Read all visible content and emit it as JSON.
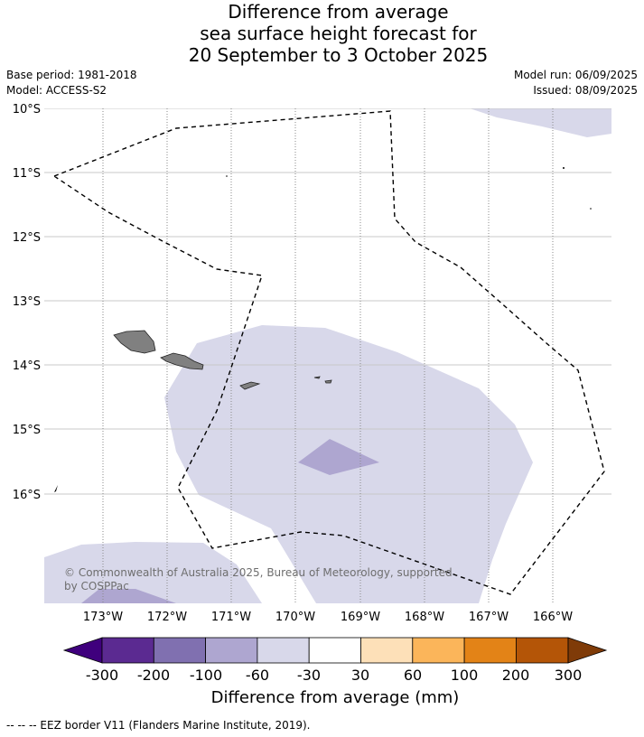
{
  "title": {
    "line1": "Difference from average",
    "line2": "sea surface height forecast for",
    "line3": "20 September to 3 October 2025"
  },
  "meta": {
    "base_period": "Base period: 1981-2018",
    "model": "Model: ACCESS-S2",
    "model_run": "Model run: 06/09/2025",
    "issued": "Issued: 08/09/2025"
  },
  "map": {
    "lat_labels": [
      "10°S",
      "11°S",
      "12°S",
      "13°S",
      "14°S",
      "15°S",
      "16°S"
    ],
    "lon_labels": [
      "173°W",
      "172°W",
      "171°W",
      "170°W",
      "169°W",
      "168°W",
      "167°W",
      "166°W"
    ],
    "copyright_line1": "© Commonwealth of Australia 2025, Bureau of Meteorology, supported",
    "copyright_line2": "by COSPPac"
  },
  "colorbar": {
    "ticks": [
      "-300",
      "-200",
      "-100",
      "-60",
      "-30",
      "30",
      "60",
      "100",
      "200",
      "300"
    ],
    "colors": [
      "#3f007d",
      "#5b2a91",
      "#8070b0",
      "#aea6d0",
      "#d8d8ea",
      "#ffffff",
      "#fde0b8",
      "#fbb55a",
      "#e38317",
      "#b45507",
      "#7f3b08"
    ],
    "title": "Difference from average (mm)"
  },
  "footer": {
    "legend": "--  --  -- EEZ border V11 (Flanders Marine Institute, 2019)."
  }
}
